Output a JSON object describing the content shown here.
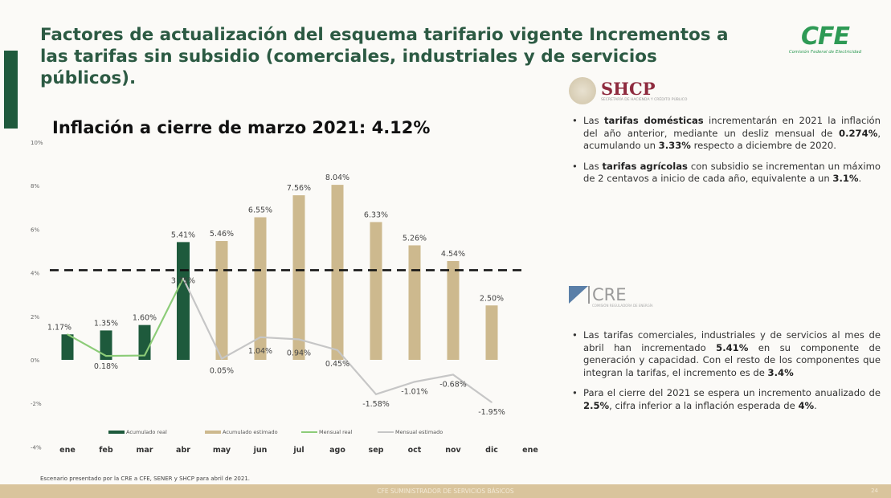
{
  "title": "Factores de actualización del esquema tarifario vigente Incrementos a las tarifas sin subsidio (comerciales, industriales y de servicios públicos).",
  "subtitle": "Inflación a cierre de marzo 2021: 4.12%",
  "logos": {
    "cfe": "CFE",
    "cfe_sub": "Comisión Federal de Electricidad",
    "shcp": "SHCP",
    "shcp_sub": "SECRETARÍA DE HACIENDA Y CRÉDITO PÚBLICO",
    "cre": "CRE",
    "cre_sub": "COMISIÓN REGULADORA DE ENERGÍA"
  },
  "shcp_bullets": [
    {
      "pre": "Las ",
      "b1": "tarifas domésticas",
      "mid": " incrementarán en 2021 la inflación del año anterior, mediante un desliz mensual de ",
      "b2": "0.274%",
      "mid2": ", acumulando un ",
      "b3": "3.33%",
      "post": " respecto a diciembre de 2020."
    },
    {
      "pre": "Las ",
      "b1": "tarifas agrícolas",
      "mid": " con subsidio se incrementan un máximo de 2 centavos a inicio de cada año, equivalente a un ",
      "b2": "3.1%",
      "mid2": ".",
      "b3": "",
      "post": ""
    }
  ],
  "cre_bullets": [
    {
      "pre": "Las tarifas comerciales, industriales y de servicios al mes de abril han incrementado ",
      "b1": "5.41%",
      "mid": " en su componente de generación y capacidad. Con el resto de los componentes que integran la tarifas, el incremento es de ",
      "b2": "3.4%",
      "mid2": "",
      "b3": "",
      "post": ""
    },
    {
      "pre": "Para el cierre del 2021 se espera un incremento anualizado de ",
      "b1": "2.5%",
      "mid": ", cifra inferior a la inflación esperada de ",
      "b2": "4%",
      "mid2": ".",
      "b3": "",
      "post": ""
    }
  ],
  "note": "Escenario presentado por la CRE a CFE, SENER y SHCP para abril  de 2021.",
  "footer": {
    "text": "CFE SUMINISTRADOR DE SERVICIOS BÁSICOS",
    "page": "24"
  },
  "chart_data": {
    "type": "bar",
    "categories": [
      "ene",
      "feb",
      "mar",
      "abr",
      "may",
      "jun",
      "jul",
      "ago",
      "sep",
      "oct",
      "nov",
      "dic",
      "ene"
    ],
    "ylim": [
      -4,
      10
    ],
    "yticks": [
      "-4%",
      "-2%",
      "0%",
      "2%",
      "4%",
      "6%",
      "8%",
      "10%"
    ],
    "ytick_values": [
      -4,
      -2,
      0,
      2,
      4,
      6,
      8,
      10
    ],
    "reference_line": {
      "value": 4.12,
      "style": "dashed",
      "color": "#111111"
    },
    "legend_position": "bottom",
    "series": [
      {
        "name": "Acumulado real",
        "kind": "bar",
        "color": "#1e5a3c",
        "values": [
          1.17,
          1.35,
          1.6,
          5.41,
          null,
          null,
          null,
          null,
          null,
          null,
          null,
          null,
          null
        ],
        "labels": [
          "1.17%",
          "1.35%",
          "1.60%",
          "5.41%",
          null,
          null,
          null,
          null,
          null,
          null,
          null,
          null,
          null
        ]
      },
      {
        "name": "Acumulado estimado",
        "kind": "bar",
        "color": "#cdb98e",
        "values": [
          null,
          null,
          null,
          null,
          5.46,
          6.55,
          7.56,
          8.04,
          6.33,
          5.26,
          4.54,
          2.5,
          null
        ],
        "labels": [
          null,
          null,
          null,
          null,
          "5.46%",
          "6.55%",
          "7.56%",
          "8.04%",
          "6.33%",
          "5.26%",
          "4.54%",
          "2.50%",
          null
        ]
      },
      {
        "name": "Mensual real",
        "kind": "line",
        "color": "#8ccc78",
        "values": [
          1.17,
          0.18,
          0.2,
          3.75,
          null,
          null,
          null,
          null,
          null,
          null,
          null,
          null,
          null
        ],
        "labels": [
          null,
          "0.18%",
          null,
          "3.75%",
          null,
          null,
          null,
          null,
          null,
          null,
          null,
          null,
          null
        ]
      },
      {
        "name": "Mensual estimado",
        "kind": "line",
        "color": "#c6c6c6",
        "values": [
          null,
          null,
          null,
          3.75,
          0.05,
          1.04,
          0.94,
          0.45,
          -1.58,
          -1.01,
          -0.68,
          -1.95,
          null
        ],
        "labels": [
          null,
          null,
          null,
          null,
          "0.05%",
          "1.04%",
          "0.94%",
          "0.45%",
          "-1.58%",
          "-1.01%",
          "-0.68%",
          "-1.95%",
          null
        ]
      }
    ]
  }
}
